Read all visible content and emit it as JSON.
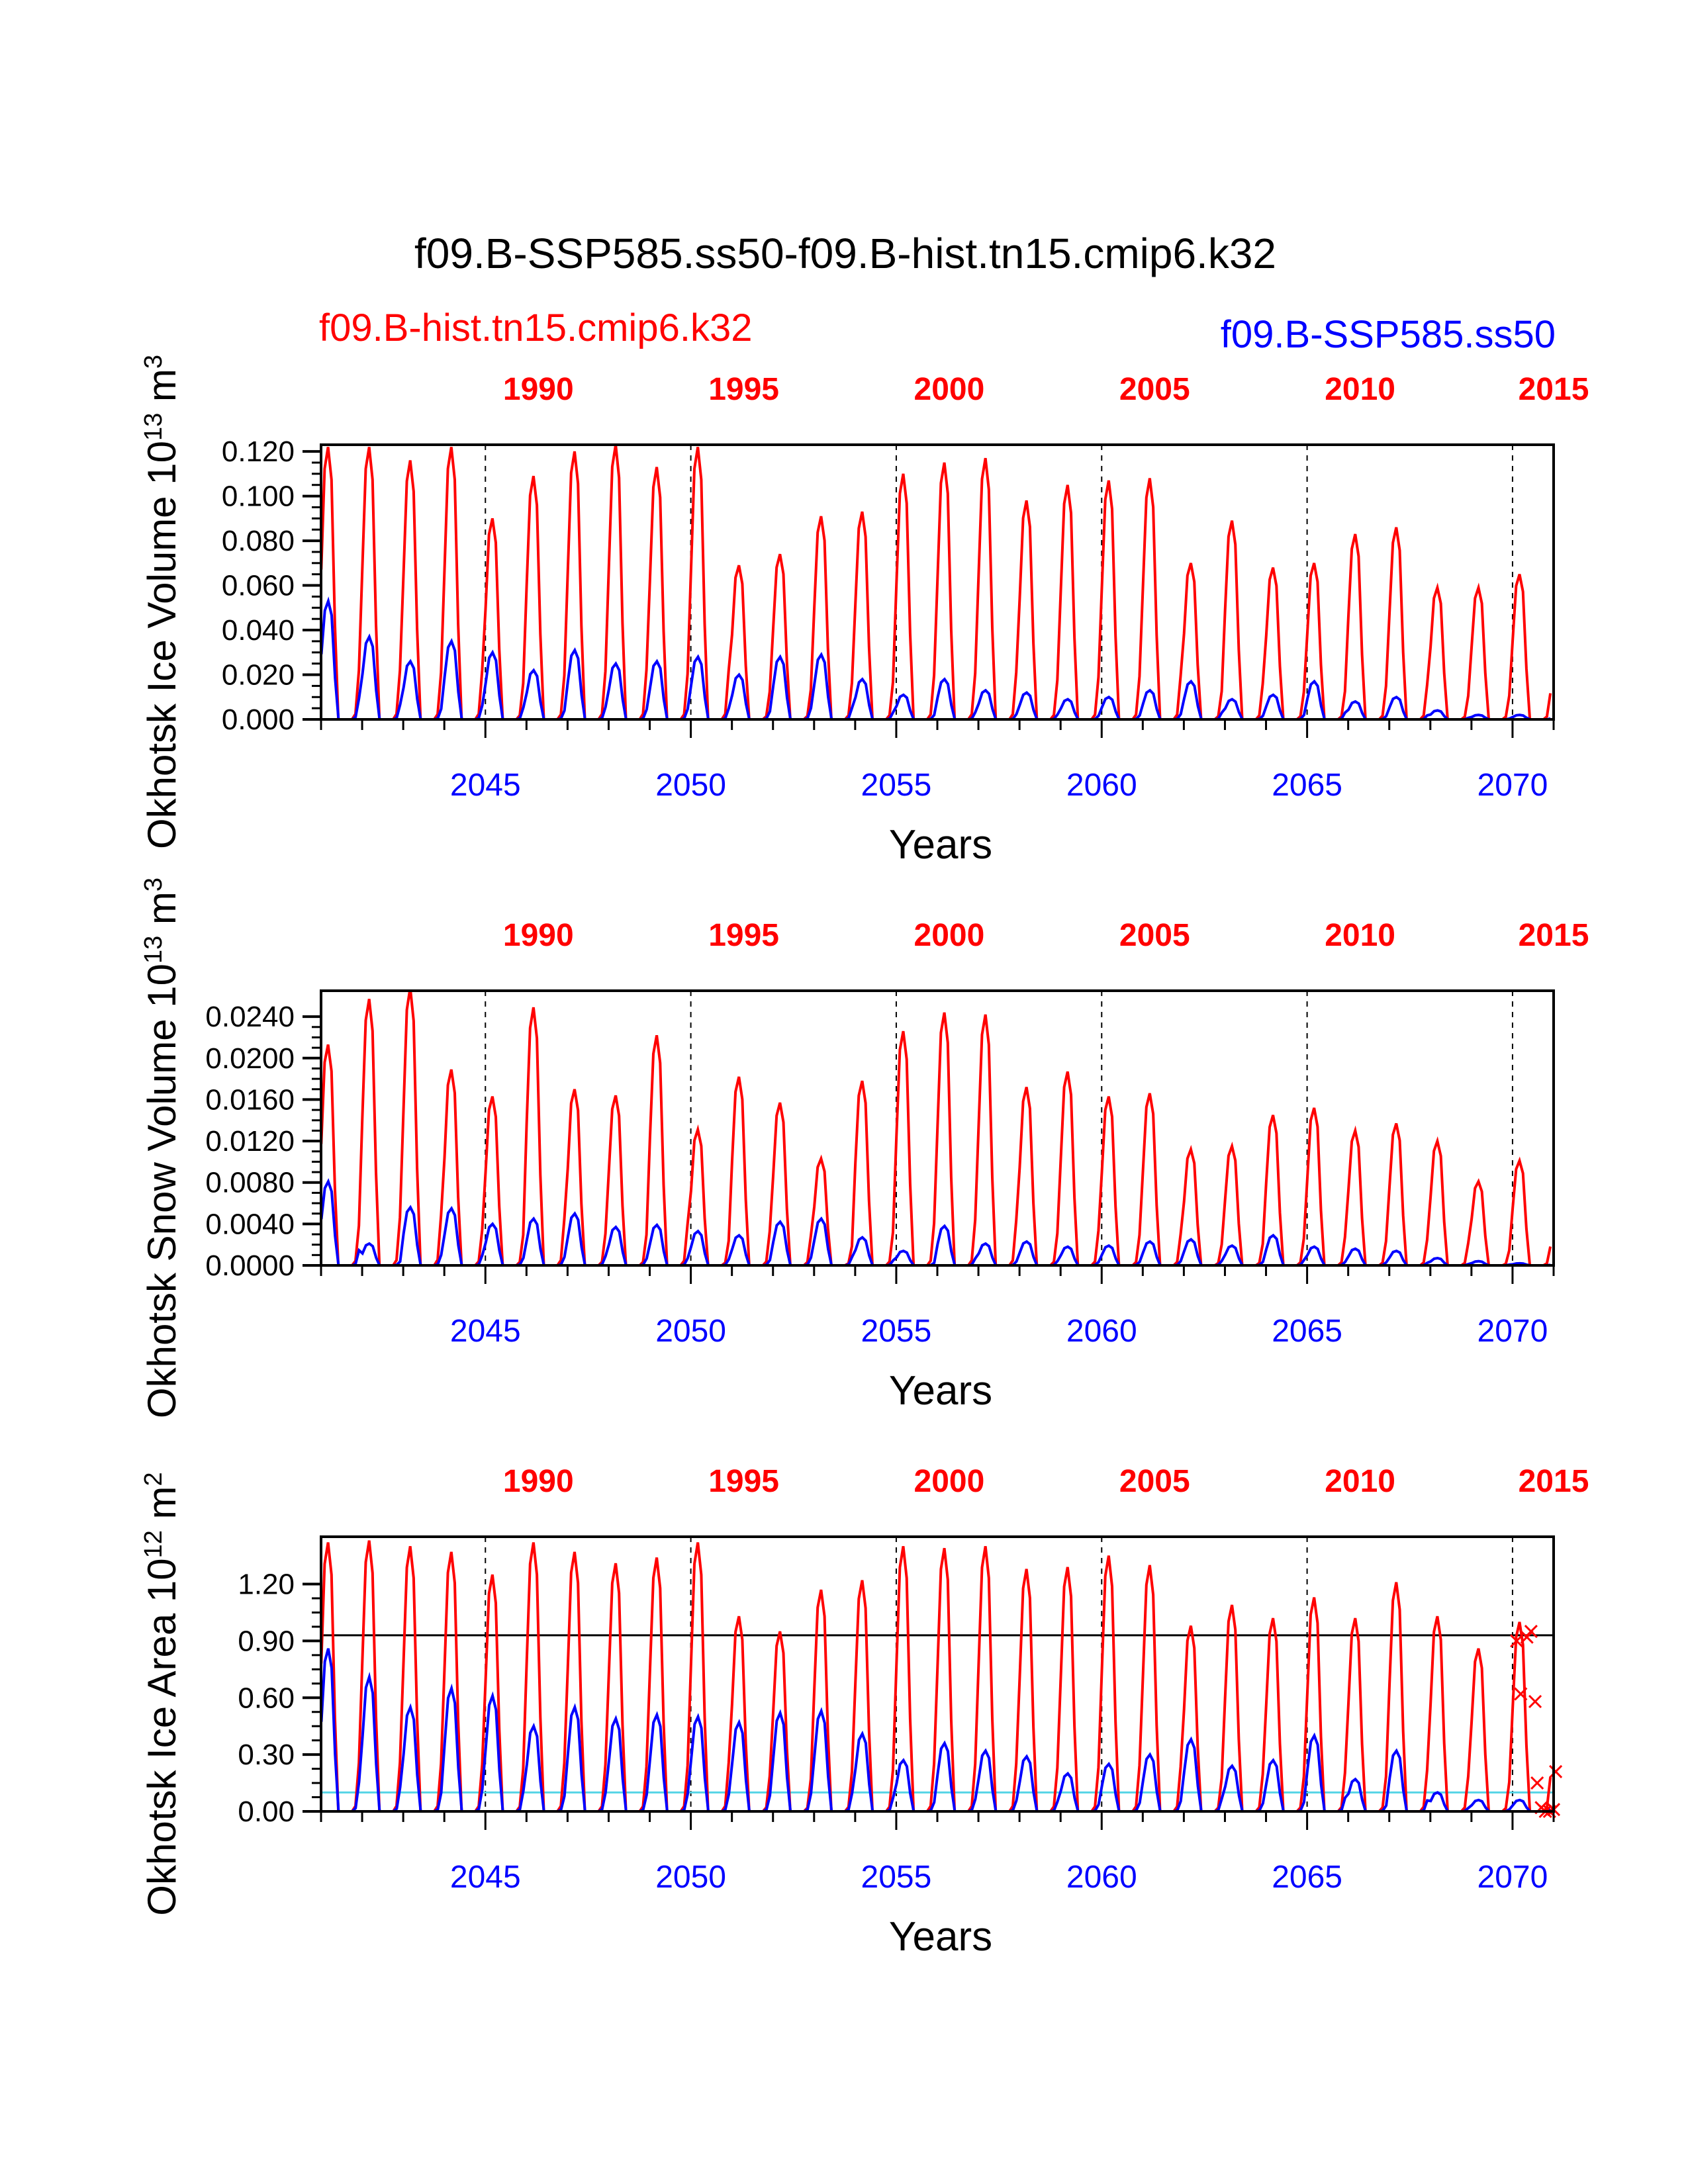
{
  "figure_title": "f09.B-SSP585.ss50-f09.B-hist.tn15.cmip6.k32",
  "legend": {
    "red_case": "f09.B-hist.tn15.cmip6.k32",
    "blue_case": "f09.B-SSP585.ss50",
    "red_color": "#ff0000",
    "blue_color": "#0000ff"
  },
  "chart_data": [
    {
      "type": "line",
      "ylabel_base": "Okhotsk Ice Volume 10",
      "ylabel_exp": "13",
      "ylabel_unit": " m",
      "ylabel_unit_exp": "3",
      "xlabel": "Years",
      "ylim": [
        0,
        0.123
      ],
      "yticks": [
        0,
        0.02,
        0.04,
        0.06,
        0.08,
        0.1,
        0.12
      ],
      "ytick_labels": [
        "0.000",
        "0.020",
        "0.040",
        "0.060",
        "0.080",
        "0.100",
        "0.120"
      ],
      "xlim": [
        2041.0,
        2071.0
      ],
      "bottom_ticks": [
        2045,
        2050,
        2055,
        2060,
        2065,
        2070
      ],
      "top_tick_labels": [
        "1990",
        "1995",
        "2000",
        "2005",
        "2010",
        "2015"
      ],
      "top_tick_positions": [
        2045,
        2050,
        2055,
        2060,
        2065,
        2070,
        2071
      ],
      "series": [
        {
          "name": "f09.B-hist.tn15.cmip6.k32",
          "color": "#ff0000",
          "annual_peaks": [
            0.122,
            0.122,
            0.116,
            0.122,
            0.09,
            0.109,
            0.12,
            0.123,
            0.113,
            0.122,
            0.069,
            0.074,
            0.091,
            0.093,
            0.11,
            0.115,
            0.117,
            0.098,
            0.105,
            0.107,
            0.108,
            0.07,
            0.089,
            0.068,
            0.07,
            0.083,
            0.086,
            0.059,
            0.059,
            0.065
          ]
        },
        {
          "name": "f09.B-SSP585.ss50",
          "color": "#0000ff",
          "annual_peaks": [
            0.053,
            0.037,
            0.026,
            0.035,
            0.03,
            0.022,
            0.031,
            0.025,
            0.026,
            0.028,
            0.02,
            0.028,
            0.029,
            0.018,
            0.011,
            0.018,
            0.013,
            0.012,
            0.009,
            0.01,
            0.013,
            0.017,
            0.009,
            0.011,
            0.017,
            0.008,
            0.01,
            0.004,
            0.002,
            0.002
          ]
        }
      ]
    },
    {
      "type": "line",
      "ylabel_base": "Okhotsk Snow Volume 10",
      "ylabel_exp": "13",
      "ylabel_unit": " m",
      "ylabel_unit_exp": "3",
      "xlabel": "Years",
      "ylim": [
        0,
        0.0265
      ],
      "yticks": [
        0,
        0.004,
        0.008,
        0.012,
        0.016,
        0.02,
        0.024
      ],
      "ytick_labels": [
        "0.0000",
        "0.0040",
        "0.0080",
        "0.0120",
        "0.0160",
        "0.0200",
        "0.0240"
      ],
      "xlim": [
        2041.0,
        2071.0
      ],
      "bottom_ticks": [
        2045,
        2050,
        2055,
        2060,
        2065,
        2070
      ],
      "top_tick_labels": [
        "1990",
        "1995",
        "2000",
        "2005",
        "2010",
        "2015"
      ],
      "top_tick_positions": [
        2045,
        2050,
        2055,
        2060,
        2065,
        2070,
        2071
      ],
      "series": [
        {
          "name": "f09.B-hist.tn15.cmip6.k32",
          "color": "#ff0000",
          "annual_peaks": [
            0.0213,
            0.0257,
            0.0268,
            0.0189,
            0.0163,
            0.0249,
            0.017,
            0.0164,
            0.0222,
            0.0131,
            0.0182,
            0.0157,
            0.0103,
            0.0178,
            0.0226,
            0.0244,
            0.0242,
            0.0172,
            0.0187,
            0.0163,
            0.0166,
            0.0112,
            0.0115,
            0.0145,
            0.0152,
            0.013,
            0.0137,
            0.012,
            0.0081,
            0.0101
          ]
        },
        {
          "name": "f09.B-SSP585.ss50",
          "color": "#0000ff",
          "annual_peaks": [
            0.0081,
            0.0021,
            0.0056,
            0.0055,
            0.004,
            0.0045,
            0.005,
            0.0037,
            0.0039,
            0.0033,
            0.0029,
            0.0042,
            0.0045,
            0.0027,
            0.0014,
            0.0038,
            0.0021,
            0.0023,
            0.0018,
            0.0019,
            0.0023,
            0.0025,
            0.0019,
            0.0029,
            0.0018,
            0.0016,
            0.0014,
            0.0007,
            0.0004,
            0.0002
          ]
        }
      ]
    },
    {
      "type": "line",
      "ylabel_base": "Okhotsk Ice Area 10",
      "ylabel_exp": "12",
      "ylabel_unit": " m",
      "ylabel_unit_exp": "2",
      "xlabel": "Years",
      "ylim": [
        0,
        1.45
      ],
      "yticks": [
        0,
        0.3,
        0.6,
        0.9,
        1.2
      ],
      "ytick_labels": [
        "0.00",
        "0.30",
        "0.60",
        "0.90",
        "1.20"
      ],
      "xlim": [
        2041.0,
        2071.0
      ],
      "bottom_ticks": [
        2045,
        2050,
        2055,
        2060,
        2065,
        2070
      ],
      "top_tick_labels": [
        "1990",
        "1995",
        "2000",
        "2005",
        "2010",
        "2015"
      ],
      "top_tick_positions": [
        2045,
        2050,
        2055,
        2060,
        2065,
        2070,
        2071
      ],
      "hlines": [
        {
          "value": 0.93,
          "color": "#000000"
        },
        {
          "value": 0.1,
          "color": "#55d4e6"
        }
      ],
      "observed_markers": [
        [
          2070.1,
          0.9
        ],
        [
          2070.2,
          0.62
        ],
        [
          2070.35,
          0.92
        ],
        [
          2070.45,
          0.95
        ],
        [
          2070.55,
          0.58
        ],
        [
          2070.6,
          0.15
        ],
        [
          2070.7,
          0.02
        ],
        [
          2070.8,
          0.0
        ],
        [
          2070.9,
          0.0
        ],
        [
          2071.0,
          0.01
        ],
        [
          2071.05,
          0.21
        ]
      ],
      "series": [
        {
          "name": "f09.B-hist.tn15.cmip6.k32",
          "color": "#ff0000",
          "annual_peaks": [
            1.42,
            1.43,
            1.4,
            1.37,
            1.25,
            1.42,
            1.37,
            1.31,
            1.34,
            1.42,
            1.03,
            0.95,
            1.17,
            1.22,
            1.4,
            1.39,
            1.4,
            1.28,
            1.29,
            1.35,
            1.3,
            0.98,
            1.09,
            1.02,
            1.13,
            1.02,
            1.21,
            1.03,
            0.86,
            1.0
          ]
        },
        {
          "name": "f09.B-SSP585.ss50",
          "color": "#0000ff",
          "annual_peaks": [
            0.86,
            0.71,
            0.55,
            0.65,
            0.61,
            0.45,
            0.55,
            0.49,
            0.51,
            0.5,
            0.47,
            0.52,
            0.53,
            0.41,
            0.27,
            0.36,
            0.32,
            0.29,
            0.2,
            0.25,
            0.3,
            0.38,
            0.24,
            0.27,
            0.4,
            0.17,
            0.32,
            0.1,
            0.06,
            0.06
          ]
        }
      ]
    }
  ]
}
